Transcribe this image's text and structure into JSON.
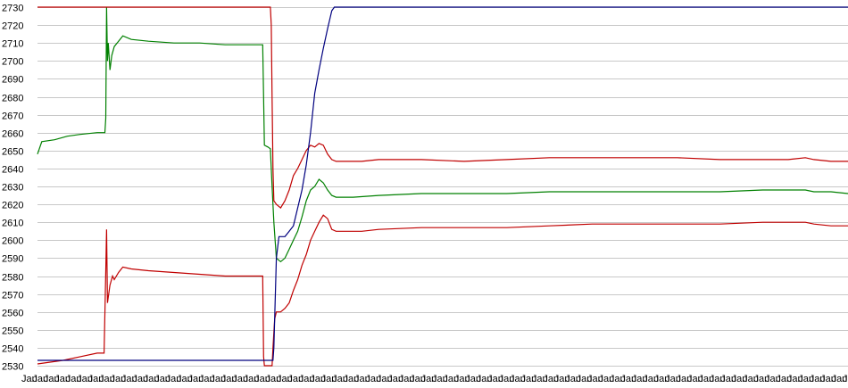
{
  "chart_data": {
    "type": "line",
    "title": "",
    "xlabel": "",
    "ylabel": "",
    "ylim": [
      2530,
      2730
    ],
    "y_ticks": [
      2530,
      2540,
      2550,
      2560,
      2570,
      2580,
      2590,
      2600,
      2610,
      2620,
      2630,
      2640,
      2650,
      2660,
      2670,
      2680,
      2690,
      2700,
      2710,
      2720,
      2730
    ],
    "grid": "horizontal",
    "legend": "none",
    "x_tick_text": "Jan",
    "x_tick_count": 75,
    "x_range": [
      0,
      950
    ],
    "series": [
      {
        "color": "#008000",
        "points": [
          [
            0,
            2648
          ],
          [
            5,
            2655
          ],
          [
            20,
            2656
          ],
          [
            35,
            2658
          ],
          [
            50,
            2659
          ],
          [
            70,
            2660
          ],
          [
            79,
            2660
          ],
          [
            80,
            2668
          ],
          [
            81,
            2730
          ],
          [
            82,
            2700
          ],
          [
            83,
            2710
          ],
          [
            85,
            2695
          ],
          [
            87,
            2703
          ],
          [
            90,
            2708
          ],
          [
            95,
            2711
          ],
          [
            100,
            2714
          ],
          [
            110,
            2712
          ],
          [
            130,
            2711
          ],
          [
            160,
            2710
          ],
          [
            190,
            2710
          ],
          [
            220,
            2709
          ],
          [
            262,
            2709
          ],
          [
            264,
            2709
          ],
          [
            265,
            2680
          ],
          [
            266,
            2653
          ],
          [
            270,
            2652
          ],
          [
            273,
            2651
          ],
          [
            275,
            2630
          ],
          [
            277,
            2610
          ],
          [
            280,
            2590
          ],
          [
            285,
            2588
          ],
          [
            290,
            2590
          ],
          [
            295,
            2595
          ],
          [
            300,
            2600
          ],
          [
            305,
            2605
          ],
          [
            310,
            2613
          ],
          [
            315,
            2622
          ],
          [
            320,
            2628
          ],
          [
            325,
            2630
          ],
          [
            330,
            2634
          ],
          [
            335,
            2632
          ],
          [
            340,
            2628
          ],
          [
            345,
            2625
          ],
          [
            350,
            2624
          ],
          [
            370,
            2624
          ],
          [
            400,
            2625
          ],
          [
            450,
            2626
          ],
          [
            500,
            2626
          ],
          [
            550,
            2626
          ],
          [
            600,
            2627
          ],
          [
            650,
            2627
          ],
          [
            700,
            2627
          ],
          [
            750,
            2627
          ],
          [
            800,
            2627
          ],
          [
            850,
            2628
          ],
          [
            880,
            2628
          ],
          [
            900,
            2628
          ],
          [
            910,
            2627
          ],
          [
            930,
            2627
          ],
          [
            950,
            2626
          ]
        ]
      },
      {
        "color": "#c00000",
        "points": [
          [
            0,
            2531
          ],
          [
            15,
            2532
          ],
          [
            30,
            2533
          ],
          [
            50,
            2535
          ],
          [
            70,
            2537
          ],
          [
            78,
            2537
          ],
          [
            80,
            2583
          ],
          [
            81,
            2606
          ],
          [
            82,
            2565
          ],
          [
            85,
            2575
          ],
          [
            88,
            2580
          ],
          [
            90,
            2578
          ],
          [
            95,
            2582
          ],
          [
            100,
            2585
          ],
          [
            110,
            2584
          ],
          [
            130,
            2583
          ],
          [
            160,
            2582
          ],
          [
            190,
            2581
          ],
          [
            220,
            2580
          ],
          [
            264,
            2580
          ],
          [
            265,
            2535
          ],
          [
            266,
            2530
          ],
          [
            275,
            2530
          ],
          [
            276,
            2540
          ],
          [
            278,
            2556
          ],
          [
            280,
            2560
          ],
          [
            285,
            2560
          ],
          [
            290,
            2562
          ],
          [
            295,
            2565
          ],
          [
            300,
            2572
          ],
          [
            305,
            2578
          ],
          [
            310,
            2586
          ],
          [
            315,
            2592
          ],
          [
            320,
            2600
          ],
          [
            325,
            2605
          ],
          [
            330,
            2610
          ],
          [
            335,
            2614
          ],
          [
            340,
            2612
          ],
          [
            345,
            2606
          ],
          [
            350,
            2605
          ],
          [
            380,
            2605
          ],
          [
            400,
            2606
          ],
          [
            450,
            2607
          ],
          [
            500,
            2607
          ],
          [
            550,
            2607
          ],
          [
            600,
            2608
          ],
          [
            650,
            2609
          ],
          [
            700,
            2609
          ],
          [
            750,
            2609
          ],
          [
            800,
            2609
          ],
          [
            850,
            2610
          ],
          [
            880,
            2610
          ],
          [
            900,
            2610
          ],
          [
            910,
            2609
          ],
          [
            930,
            2608
          ],
          [
            950,
            2608
          ]
        ]
      },
      {
        "color": "#c00000",
        "points": [
          [
            0,
            2730
          ],
          [
            273,
            2730
          ],
          [
            274,
            2720
          ],
          [
            275,
            2680
          ],
          [
            276,
            2640
          ],
          [
            277,
            2622
          ],
          [
            280,
            2620
          ],
          [
            285,
            2618
          ],
          [
            290,
            2622
          ],
          [
            295,
            2628
          ],
          [
            300,
            2636
          ],
          [
            305,
            2640
          ],
          [
            310,
            2645
          ],
          [
            315,
            2650
          ],
          [
            320,
            2653
          ],
          [
            325,
            2652
          ],
          [
            330,
            2654
          ],
          [
            335,
            2653
          ],
          [
            340,
            2648
          ],
          [
            345,
            2645
          ],
          [
            350,
            2644
          ],
          [
            380,
            2644
          ],
          [
            400,
            2645
          ],
          [
            450,
            2645
          ],
          [
            500,
            2644
          ],
          [
            550,
            2645
          ],
          [
            600,
            2646
          ],
          [
            650,
            2646
          ],
          [
            700,
            2646
          ],
          [
            750,
            2646
          ],
          [
            800,
            2645
          ],
          [
            850,
            2645
          ],
          [
            880,
            2645
          ],
          [
            900,
            2646
          ],
          [
            910,
            2645
          ],
          [
            930,
            2644
          ],
          [
            950,
            2644
          ]
        ]
      },
      {
        "color": "#00007f",
        "points": [
          [
            0,
            2533
          ],
          [
            276,
            2533
          ],
          [
            277,
            2540
          ],
          [
            280,
            2590
          ],
          [
            283,
            2602
          ],
          [
            290,
            2602
          ],
          [
            295,
            2605
          ],
          [
            300,
            2608
          ],
          [
            305,
            2618
          ],
          [
            310,
            2628
          ],
          [
            315,
            2642
          ],
          [
            320,
            2660
          ],
          [
            325,
            2682
          ],
          [
            330,
            2695
          ],
          [
            335,
            2707
          ],
          [
            340,
            2718
          ],
          [
            345,
            2728
          ],
          [
            348,
            2730
          ],
          [
            950,
            2730
          ]
        ]
      }
    ]
  }
}
